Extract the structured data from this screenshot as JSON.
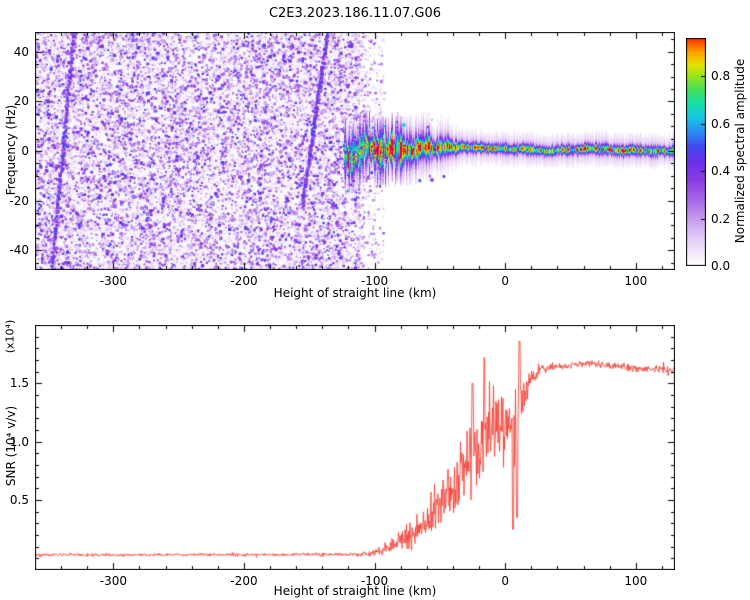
{
  "figure": {
    "title": "C2E3.2023.186.11.07.G06"
  },
  "chart_data": [
    {
      "type": "heatmap",
      "title": "C2E3.2023.186.11.07.G06",
      "xlabel": "Height of straight line (km)",
      "ylabel": "Frequency (Hz)",
      "xlim": [
        -360,
        130
      ],
      "ylim": [
        -48,
        48
      ],
      "x_ticks": [
        -300,
        -200,
        -100,
        0,
        100
      ],
      "x_minor_step": 20,
      "y_ticks": [
        -40,
        -20,
        0,
        20,
        40
      ],
      "y_minor_step": 5,
      "grid": false,
      "colorbar": {
        "label": "Normalized spectral amplitude",
        "ticks": [
          "0.0",
          "0.2",
          "0.4",
          "0.6",
          "0.8"
        ],
        "range": [
          0,
          0.96
        ]
      },
      "colormap_stops": [
        [
          0.0,
          "#ffffff"
        ],
        [
          0.04,
          "#f7f0fc"
        ],
        [
          0.1,
          "#e7d4f7"
        ],
        [
          0.18,
          "#cda6ef"
        ],
        [
          0.27,
          "#ab6ce6"
        ],
        [
          0.36,
          "#8b3de0"
        ],
        [
          0.44,
          "#6a30e8"
        ],
        [
          0.5,
          "#4348ee"
        ],
        [
          0.56,
          "#2e86f5"
        ],
        [
          0.62,
          "#18c2e8"
        ],
        [
          0.68,
          "#14dfae"
        ],
        [
          0.74,
          "#3fe05c"
        ],
        [
          0.8,
          "#9ae51c"
        ],
        [
          0.85,
          "#e8e000"
        ],
        [
          0.9,
          "#ffa200"
        ],
        [
          0.95,
          "#ff4400"
        ],
        [
          1.0,
          "#e8003c"
        ]
      ],
      "noise_field": {
        "x_from": -360,
        "x_to": -113,
        "amp_range": [
          0.05,
          0.5
        ],
        "description": "dense low-amplitude purple speckle noise covering full frequency range"
      },
      "aliasing_streaks": [
        {
          "from": [
            -348,
            -48
          ],
          "to": [
            -331,
            48
          ]
        },
        {
          "from": [
            -156,
            -22
          ],
          "to": [
            -137,
            48
          ]
        }
      ],
      "signal_trace": {
        "x_from": -123,
        "x_to": 130,
        "center_hz": 0.5,
        "chaotic_until_km": -30,
        "chaotic_spread_hz": 10,
        "narrow_spread_hz": 2,
        "description": "broad chaotic multicolor echo from -123 to -30 km narrowing to a thin high-amplitude line near 0 Hz out to 130 km, with red saturated patches near 60-95 km"
      }
    },
    {
      "type": "line",
      "xlabel": "Height of straight line (km)",
      "ylabel": "SNR (10⁴ v/v)",
      "scale_annotation": "(x10⁴)",
      "xlim": [
        -360,
        130
      ],
      "ylim": [
        -0.1,
        2.0
      ],
      "x_ticks": [
        -300,
        -200,
        -100,
        0,
        100
      ],
      "x_minor_step": 20,
      "y_ticks": [
        "0.5",
        "1.0",
        "1.5"
      ],
      "y_minor_step": 0.1,
      "line_color": "#f23a2f",
      "envelope": [
        [
          -360,
          0.03,
          0.018
        ],
        [
          -170,
          0.03,
          0.018
        ],
        [
          -110,
          0.035,
          0.025
        ],
        [
          -100,
          0.05,
          0.05
        ],
        [
          -90,
          0.09,
          0.09
        ],
        [
          -80,
          0.13,
          0.13
        ],
        [
          -70,
          0.22,
          0.2
        ],
        [
          -60,
          0.32,
          0.28
        ],
        [
          -50,
          0.45,
          0.35
        ],
        [
          -40,
          0.6,
          0.4
        ],
        [
          -30,
          0.8,
          0.45
        ],
        [
          -20,
          0.95,
          0.5
        ],
        [
          -12,
          1.05,
          0.5
        ],
        [
          -5,
          1.1,
          0.45
        ],
        [
          2,
          1.15,
          0.5
        ],
        [
          8,
          1.0,
          0.65
        ],
        [
          14,
          1.4,
          0.35
        ],
        [
          20,
          1.55,
          0.12
        ],
        [
          28,
          1.63,
          0.05
        ],
        [
          60,
          1.67,
          0.045
        ],
        [
          90,
          1.64,
          0.05
        ],
        [
          130,
          1.61,
          0.05
        ]
      ],
      "spikes": [
        {
          "km": -25,
          "v": 1.5
        },
        {
          "km": -16,
          "v": 1.72
        },
        {
          "km": 11,
          "v": 1.86
        }
      ],
      "dips": [
        {
          "km": 6,
          "v": 0.25
        },
        {
          "km": 9,
          "v": 0.35
        }
      ],
      "description": "flat near-zero SNR baseline until about -100 km, noisy spiky rise between -90 and +15 km, plateau near 1.65x10^4 v/v beyond +30 km"
    }
  ]
}
